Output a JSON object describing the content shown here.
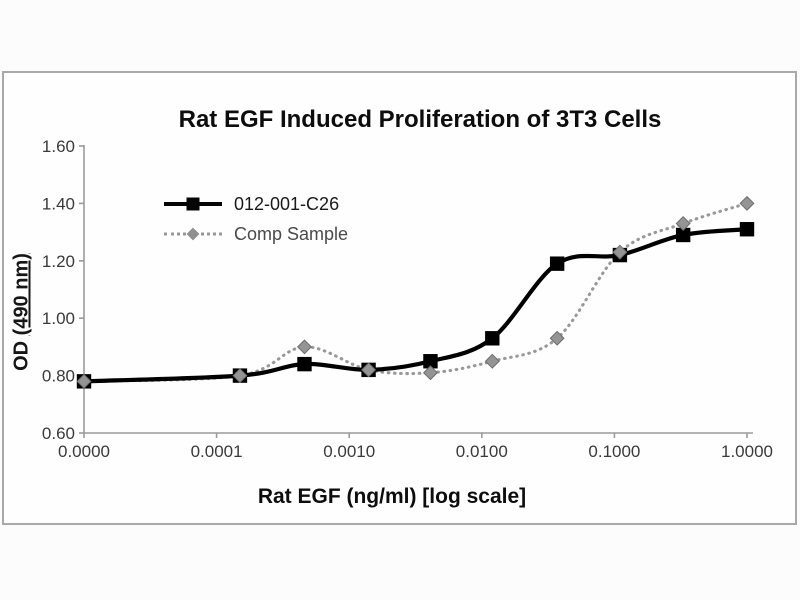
{
  "figure": {
    "outer_background": "#fcfcfc",
    "panel_background": "#fefefe",
    "panel_border_color": "#a9a9a9",
    "axis_color": "#9b9b9b",
    "tick_label_color": "#3a3a3a"
  },
  "chart_data": {
    "type": "line",
    "title": "Rat EGF Induced Proliferation of 3T3 Cells",
    "xlabel": "Rat EGF (ng/ml) [log scale]",
    "ylabel": "OD (490 nm)",
    "ylabel_parts": {
      "prefix": "OD ",
      "underlined": "(490 nm)",
      "suffix": ""
    },
    "x_scale": "log, zero pinned at axis origin",
    "grid": false,
    "legend_position": "inside upper-left",
    "x": [
      0,
      0.00015,
      0.00046,
      0.0014,
      0.0041,
      0.012,
      0.037,
      0.11,
      0.33,
      1.0
    ],
    "series": [
      {
        "name": "012-001-C26",
        "color": "#000000",
        "line_style": "solid",
        "marker": "square",
        "values": [
          0.78,
          0.8,
          0.84,
          0.82,
          0.85,
          0.93,
          1.19,
          1.22,
          1.29,
          1.31
        ]
      },
      {
        "name": "Comp Sample",
        "color": "#999999",
        "line_style": "dotted",
        "marker": "diamond",
        "values": [
          0.78,
          0.8,
          0.9,
          0.82,
          0.81,
          0.85,
          0.93,
          1.23,
          1.33,
          1.4
        ]
      }
    ],
    "x_ticks": {
      "labels": [
        "0.0000",
        "0.0001",
        "0.0010",
        "0.0100",
        "0.1000",
        "1.0000"
      ],
      "values": [
        0,
        0.0001,
        0.001,
        0.01,
        0.1,
        1
      ]
    },
    "y_ticks": {
      "labels": [
        "1.60",
        "1.40",
        "1.20",
        "1.00",
        "0.80",
        "0.60"
      ],
      "values": [
        1.6,
        1.4,
        1.2,
        1.0,
        0.8,
        0.6
      ]
    },
    "ylim": [
      0.6,
      1.6
    ]
  }
}
